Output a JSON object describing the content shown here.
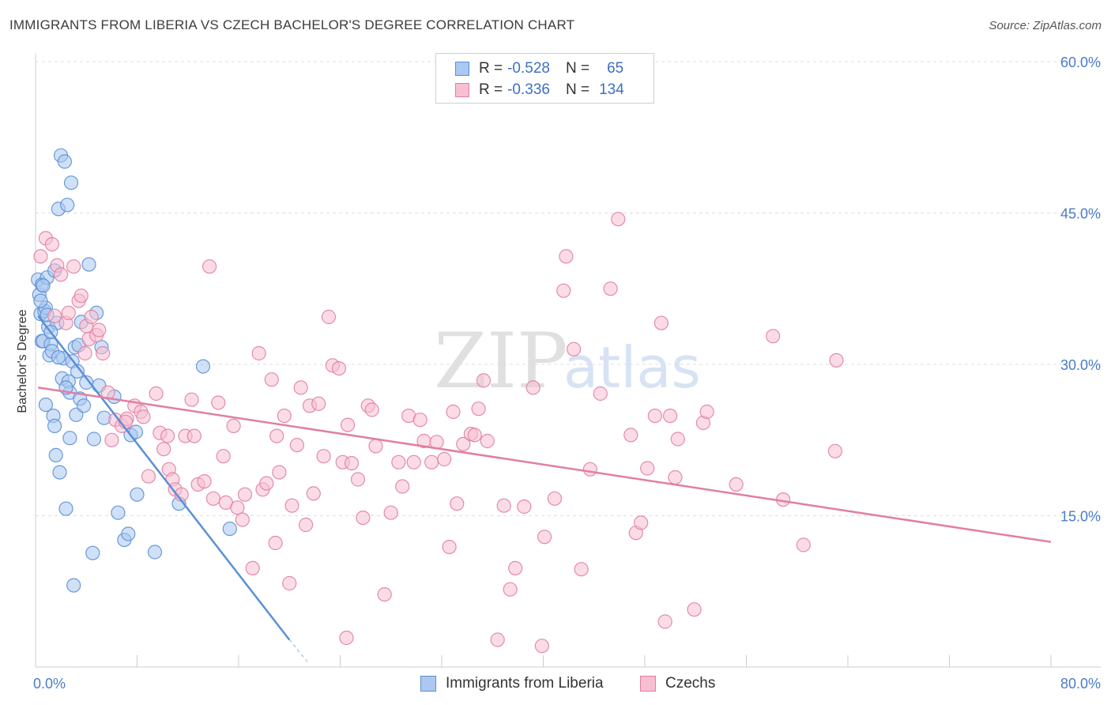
{
  "title": "IMMIGRANTS FROM LIBERIA VS CZECH BACHELOR'S DEGREE CORRELATION CHART",
  "source": "Source: ZipAtlas.com",
  "watermark": {
    "zip": "ZIP",
    "atlas": "atlas"
  },
  "legend": {
    "r_label": "R =",
    "n_label": "N =",
    "rows": [
      {
        "r": "-0.528",
        "n": "65",
        "fill": "#aac8f0",
        "stroke": "#5b8fd6"
      },
      {
        "r": "-0.336",
        "n": "134",
        "fill": "#f7bfd1",
        "stroke": "#e07fa2"
      }
    ]
  },
  "bottom_legend": [
    {
      "label": "Immigrants from Liberia",
      "fill": "#aac8f0",
      "stroke": "#5b8fd6"
    },
    {
      "label": "Czechs",
      "fill": "#f7bfd1",
      "stroke": "#e07fa2"
    }
  ],
  "chart_data": {
    "type": "scatter",
    "ylabel": "Bachelor's Degree",
    "xlim": [
      0,
      80
    ],
    "ylim": [
      0,
      60
    ],
    "x_tick_labels": [
      "0.0%",
      "80.0%"
    ],
    "y_ticks": [
      15,
      30,
      45,
      60
    ],
    "y_tick_labels": [
      "15.0%",
      "30.0%",
      "45.0%",
      "60.0%"
    ],
    "grid": "horizontal dashed",
    "series": [
      {
        "name": "Immigrants from Liberia",
        "color": "#5b8fd6",
        "fill": "#aac8f0",
        "trend": {
          "x": [
            0.2,
            20.0
          ],
          "y": [
            34.8,
            2.7
          ],
          "dash_to": [
            21.5,
            0.4
          ]
        },
        "points": [
          [
            0.2,
            38.4
          ],
          [
            0.3,
            36.9
          ],
          [
            0.4,
            35.0
          ],
          [
            0.5,
            32.3
          ],
          [
            0.5,
            37.9
          ],
          [
            0.6,
            32.3
          ],
          [
            0.7,
            35.3
          ],
          [
            0.8,
            35.6
          ],
          [
            0.8,
            26.0
          ],
          [
            0.9,
            38.6
          ],
          [
            1.0,
            33.7
          ],
          [
            1.1,
            30.9
          ],
          [
            1.2,
            32.0
          ],
          [
            1.3,
            31.3
          ],
          [
            1.4,
            24.9
          ],
          [
            1.5,
            23.9
          ],
          [
            1.5,
            39.3
          ],
          [
            1.6,
            21.0
          ],
          [
            1.7,
            34.1
          ],
          [
            1.8,
            45.4
          ],
          [
            1.9,
            19.3
          ],
          [
            2.0,
            50.7
          ],
          [
            2.1,
            28.6
          ],
          [
            2.2,
            30.6
          ],
          [
            2.3,
            50.1
          ],
          [
            2.4,
            15.7
          ],
          [
            2.5,
            45.8
          ],
          [
            2.6,
            28.3
          ],
          [
            2.7,
            22.7
          ],
          [
            2.7,
            27.2
          ],
          [
            2.8,
            48.0
          ],
          [
            2.9,
            30.3
          ],
          [
            3.0,
            8.1
          ],
          [
            3.1,
            31.7
          ],
          [
            3.2,
            25.0
          ],
          [
            3.3,
            29.3
          ],
          [
            3.5,
            26.6
          ],
          [
            3.6,
            34.2
          ],
          [
            3.8,
            25.9
          ],
          [
            4.0,
            28.2
          ],
          [
            4.2,
            39.9
          ],
          [
            4.5,
            11.3
          ],
          [
            4.6,
            22.6
          ],
          [
            4.8,
            35.1
          ],
          [
            5.0,
            27.9
          ],
          [
            5.2,
            31.7
          ],
          [
            5.4,
            24.7
          ],
          [
            6.2,
            26.8
          ],
          [
            6.5,
            15.3
          ],
          [
            7.0,
            12.6
          ],
          [
            7.3,
            13.2
          ],
          [
            7.5,
            23.0
          ],
          [
            7.9,
            23.3
          ],
          [
            8.0,
            17.1
          ],
          [
            9.4,
            11.4
          ],
          [
            11.3,
            16.2
          ],
          [
            13.2,
            29.8
          ],
          [
            15.3,
            13.7
          ],
          [
            0.4,
            36.3
          ],
          [
            1.2,
            33.2
          ],
          [
            2.4,
            27.7
          ],
          [
            0.9,
            34.9
          ],
          [
            3.4,
            31.9
          ],
          [
            1.8,
            30.7
          ],
          [
            0.6,
            37.8
          ]
        ]
      },
      {
        "name": "Czechs",
        "color": "#e07fa2",
        "fill": "#f7bfd1",
        "trend": {
          "x": [
            0.2,
            80.0
          ],
          "y": [
            27.7,
            12.4
          ]
        },
        "points": [
          [
            0.4,
            40.7
          ],
          [
            0.8,
            42.5
          ],
          [
            1.3,
            41.9
          ],
          [
            1.5,
            34.8
          ],
          [
            1.7,
            39.8
          ],
          [
            2.0,
            38.9
          ],
          [
            2.4,
            34.1
          ],
          [
            2.6,
            35.1
          ],
          [
            3.0,
            39.7
          ],
          [
            3.4,
            36.3
          ],
          [
            3.6,
            36.8
          ],
          [
            4.0,
            33.8
          ],
          [
            4.2,
            32.5
          ],
          [
            4.4,
            34.7
          ],
          [
            4.8,
            32.9
          ],
          [
            5.0,
            33.4
          ],
          [
            5.3,
            31.1
          ],
          [
            5.7,
            27.2
          ],
          [
            6.0,
            22.5
          ],
          [
            6.3,
            24.5
          ],
          [
            6.8,
            23.9
          ],
          [
            7.2,
            24.6
          ],
          [
            7.8,
            25.9
          ],
          [
            8.3,
            25.3
          ],
          [
            8.5,
            24.8
          ],
          [
            8.9,
            18.9
          ],
          [
            9.5,
            27.1
          ],
          [
            9.8,
            23.2
          ],
          [
            10.1,
            21.6
          ],
          [
            10.5,
            19.6
          ],
          [
            10.8,
            18.6
          ],
          [
            11.0,
            17.6
          ],
          [
            11.5,
            17.1
          ],
          [
            11.8,
            22.9
          ],
          [
            12.3,
            26.5
          ],
          [
            12.5,
            22.9
          ],
          [
            12.8,
            18.1
          ],
          [
            13.3,
            18.4
          ],
          [
            13.7,
            39.7
          ],
          [
            14.0,
            16.7
          ],
          [
            14.4,
            26.2
          ],
          [
            14.8,
            20.9
          ],
          [
            15.0,
            16.3
          ],
          [
            15.6,
            23.9
          ],
          [
            15.9,
            15.8
          ],
          [
            16.3,
            14.6
          ],
          [
            16.5,
            17.1
          ],
          [
            17.1,
            9.8
          ],
          [
            17.6,
            31.1
          ],
          [
            17.9,
            17.6
          ],
          [
            18.2,
            18.2
          ],
          [
            18.6,
            28.5
          ],
          [
            18.9,
            12.3
          ],
          [
            19.2,
            19.3
          ],
          [
            19.6,
            24.9
          ],
          [
            20.0,
            8.3
          ],
          [
            20.2,
            16.0
          ],
          [
            20.6,
            22.0
          ],
          [
            20.9,
            27.7
          ],
          [
            21.3,
            14.1
          ],
          [
            21.6,
            25.9
          ],
          [
            21.9,
            17.2
          ],
          [
            22.3,
            26.1
          ],
          [
            22.7,
            20.9
          ],
          [
            23.1,
            34.7
          ],
          [
            23.4,
            29.9
          ],
          [
            23.9,
            29.6
          ],
          [
            24.2,
            20.3
          ],
          [
            24.5,
            2.9
          ],
          [
            24.9,
            20.2
          ],
          [
            25.4,
            18.6
          ],
          [
            25.8,
            14.8
          ],
          [
            26.2,
            25.9
          ],
          [
            26.5,
            25.5
          ],
          [
            26.8,
            21.9
          ],
          [
            27.5,
            7.2
          ],
          [
            28.0,
            15.3
          ],
          [
            28.6,
            20.3
          ],
          [
            28.9,
            17.9
          ],
          [
            29.4,
            24.9
          ],
          [
            29.8,
            20.3
          ],
          [
            30.3,
            24.5
          ],
          [
            30.6,
            22.4
          ],
          [
            31.2,
            20.3
          ],
          [
            31.6,
            22.3
          ],
          [
            32.2,
            20.6
          ],
          [
            32.6,
            11.9
          ],
          [
            32.9,
            25.3
          ],
          [
            33.2,
            16.2
          ],
          [
            33.7,
            22.1
          ],
          [
            34.3,
            23.1
          ],
          [
            34.6,
            23.0
          ],
          [
            34.9,
            25.6
          ],
          [
            35.3,
            28.4
          ],
          [
            35.6,
            22.4
          ],
          [
            36.4,
            2.7
          ],
          [
            36.9,
            16.0
          ],
          [
            37.4,
            7.7
          ],
          [
            37.8,
            9.8
          ],
          [
            38.5,
            15.9
          ],
          [
            39.2,
            27.7
          ],
          [
            39.9,
            2.1
          ],
          [
            40.1,
            12.9
          ],
          [
            40.9,
            16.7
          ],
          [
            41.6,
            37.3
          ],
          [
            41.8,
            40.7
          ],
          [
            42.4,
            31.5
          ],
          [
            43.0,
            9.7
          ],
          [
            43.7,
            19.6
          ],
          [
            44.5,
            27.1
          ],
          [
            45.3,
            37.5
          ],
          [
            45.9,
            44.4
          ],
          [
            46.9,
            23.0
          ],
          [
            47.3,
            13.3
          ],
          [
            47.7,
            14.3
          ],
          [
            48.2,
            19.7
          ],
          [
            48.8,
            24.9
          ],
          [
            49.3,
            34.1
          ],
          [
            49.6,
            4.5
          ],
          [
            50.0,
            24.9
          ],
          [
            50.4,
            18.8
          ],
          [
            50.6,
            22.6
          ],
          [
            51.9,
            5.7
          ],
          [
            52.6,
            24.2
          ],
          [
            52.9,
            25.3
          ],
          [
            55.2,
            18.1
          ],
          [
            58.1,
            32.8
          ],
          [
            58.9,
            16.6
          ],
          [
            60.5,
            12.1
          ],
          [
            63.1,
            30.4
          ],
          [
            63.0,
            21.4
          ],
          [
            3.9,
            31.1
          ],
          [
            7.1,
            24.3
          ],
          [
            10.4,
            22.9
          ],
          [
            19.0,
            22.9
          ],
          [
            24.6,
            24.0
          ]
        ]
      }
    ]
  }
}
